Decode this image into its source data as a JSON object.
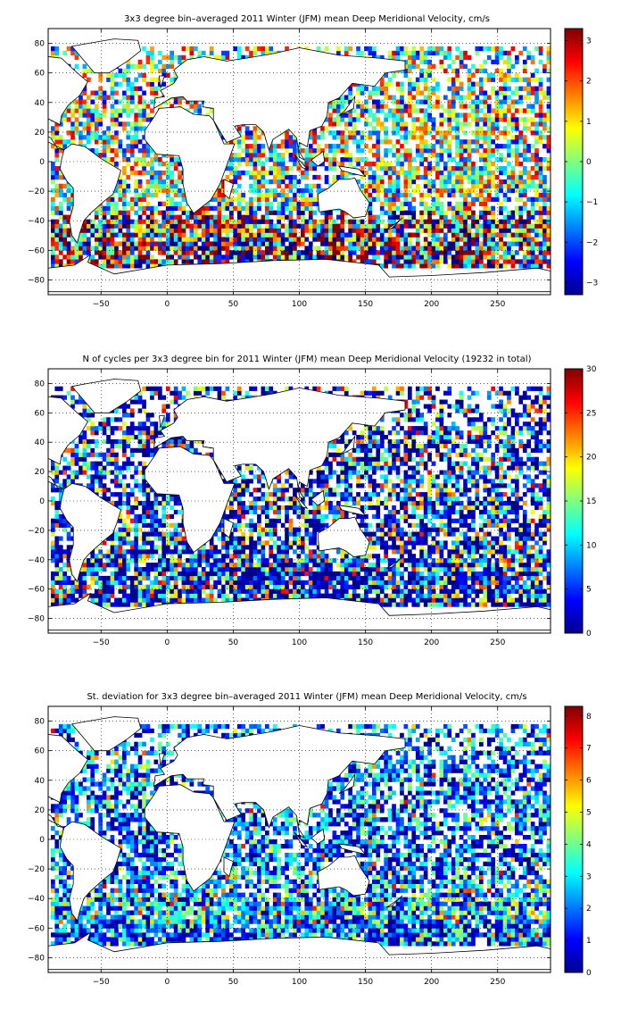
{
  "chart_data": [
    {
      "type": "heatmap",
      "title": "3x3 degree bin–averaged 2011 Winter (JFM) mean Deep Meridional Velocity, cm/s",
      "xlabel": "",
      "ylabel": "",
      "xlim": [
        -90,
        290
      ],
      "ylim": [
        -90,
        90
      ],
      "xticks": [
        -50,
        0,
        50,
        100,
        150,
        200,
        250
      ],
      "yticks": [
        80,
        60,
        40,
        20,
        0,
        -20,
        -40,
        -60,
        -80
      ],
      "grid": true,
      "bin_size_deg": 3,
      "colormap": "jet",
      "colorbar": {
        "min": -3.3,
        "max": 3.3,
        "ticks": [
          3,
          2,
          1,
          0,
          -1,
          -2,
          -3
        ]
      }
    },
    {
      "type": "heatmap",
      "title": "N of cycles per 3x3 degree bin for 2011 Winter (JFM) mean Deep Meridional Velocity (19232 in total)",
      "xlabel": "",
      "ylabel": "",
      "xlim": [
        -90,
        290
      ],
      "ylim": [
        -90,
        90
      ],
      "xticks": [
        -50,
        0,
        50,
        100,
        150,
        200,
        250
      ],
      "yticks": [
        80,
        60,
        40,
        20,
        0,
        -20,
        -40,
        -60,
        -80
      ],
      "grid": true,
      "bin_size_deg": 3,
      "colormap": "jet",
      "colorbar": {
        "min": 0,
        "max": 30,
        "ticks": [
          30,
          25,
          20,
          15,
          10,
          5,
          0
        ]
      }
    },
    {
      "type": "heatmap",
      "title": "St. deviation for 3x3 degree bin–averaged 2011 Winter (JFM) mean Deep Meridional Velocity, cm/s",
      "xlabel": "",
      "ylabel": "",
      "xlim": [
        -90,
        290
      ],
      "ylim": [
        -90,
        90
      ],
      "xticks": [
        -50,
        0,
        50,
        100,
        150,
        200,
        250
      ],
      "yticks": [
        80,
        60,
        40,
        20,
        0,
        -20,
        -40,
        -60,
        -80
      ],
      "grid": true,
      "bin_size_deg": 3,
      "colormap": "jet",
      "colorbar": {
        "min": 0,
        "max": 8.3,
        "ticks": [
          8,
          7,
          6,
          5,
          4,
          3,
          2,
          1,
          0
        ]
      }
    }
  ]
}
